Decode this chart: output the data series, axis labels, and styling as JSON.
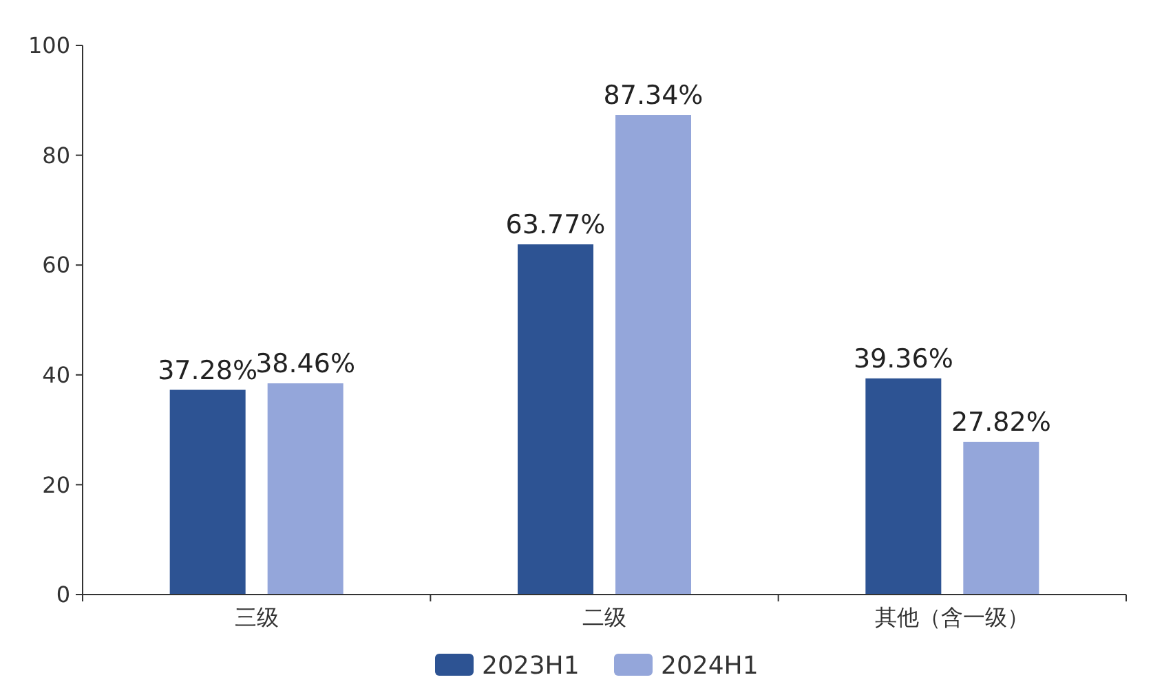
{
  "chart_data": {
    "type": "bar",
    "categories": [
      "三级",
      "二级",
      "其他（含一级）"
    ],
    "series": [
      {
        "name": "2023H1",
        "color": "#2d5393",
        "values": [
          37.28,
          63.77,
          39.36
        ],
        "value_labels": [
          "37.28%",
          "63.77%",
          "39.36%"
        ]
      },
      {
        "name": "2024H1",
        "color": "#94a6da",
        "values": [
          38.46,
          87.34,
          27.82
        ],
        "value_labels": [
          "38.46%",
          "87.34%",
          "27.82%"
        ]
      }
    ],
    "ylim": [
      0,
      100
    ],
    "yticks": [
      0,
      20,
      40,
      60,
      80,
      100
    ],
    "grid": false,
    "legend": "bottom"
  }
}
